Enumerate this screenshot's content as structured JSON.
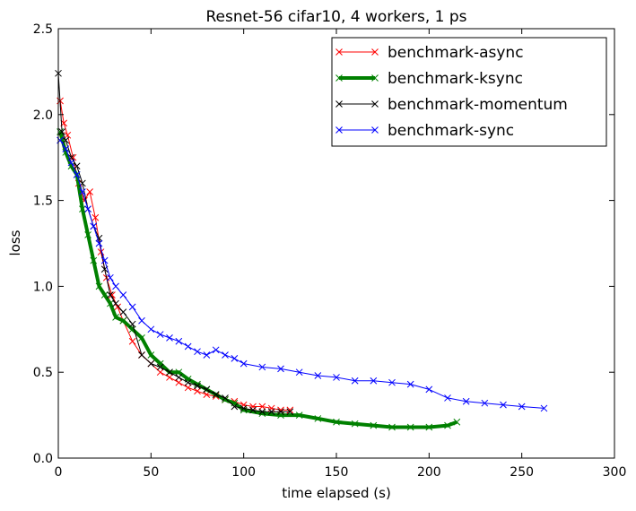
{
  "chart_data": {
    "type": "line",
    "title": "Resnet-56 cifar10, 4 workers, 1 ps",
    "xlabel": "time elapsed (s)",
    "ylabel": "loss",
    "xlim": [
      0,
      300
    ],
    "ylim": [
      0.0,
      2.5
    ],
    "xticks": [
      "0",
      "50",
      "100",
      "150",
      "200",
      "250",
      "300"
    ],
    "yticks": [
      "0.0",
      "0.5",
      "1.0",
      "1.5",
      "2.0",
      "2.5"
    ],
    "grid": false,
    "legend_position": "top-right",
    "series": [
      {
        "name": "benchmark-async",
        "color": "#ff0000",
        "marker": "x",
        "x": [
          1,
          3,
          5,
          8,
          11,
          14,
          17,
          20,
          23,
          26,
          29,
          32,
          35,
          40,
          45,
          50,
          55,
          60,
          65,
          70,
          75,
          80,
          85,
          90,
          95,
          100,
          105,
          110,
          115,
          120,
          125
        ],
        "y": [
          2.08,
          1.95,
          1.88,
          1.75,
          1.6,
          1.5,
          1.55,
          1.4,
          1.2,
          1.05,
          0.95,
          0.88,
          0.8,
          0.68,
          0.6,
          0.55,
          0.5,
          0.47,
          0.44,
          0.41,
          0.39,
          0.37,
          0.36,
          0.34,
          0.33,
          0.31,
          0.3,
          0.3,
          0.29,
          0.28,
          0.28
        ]
      },
      {
        "name": "benchmark-ksync",
        "color": "#008000",
        "marker": "x",
        "x": [
          1,
          4,
          7,
          10,
          13,
          16,
          19,
          22,
          25,
          28,
          31,
          35,
          40,
          45,
          50,
          55,
          60,
          65,
          70,
          75,
          80,
          85,
          90,
          95,
          100,
          110,
          120,
          130,
          140,
          150,
          160,
          170,
          180,
          190,
          200,
          210,
          215
        ],
        "y": [
          1.9,
          1.78,
          1.7,
          1.65,
          1.45,
          1.3,
          1.15,
          1.0,
          0.95,
          0.9,
          0.82,
          0.8,
          0.75,
          0.7,
          0.6,
          0.55,
          0.5,
          0.5,
          0.46,
          0.43,
          0.4,
          0.37,
          0.34,
          0.32,
          0.28,
          0.26,
          0.25,
          0.25,
          0.23,
          0.21,
          0.2,
          0.19,
          0.18,
          0.18,
          0.18,
          0.19,
          0.21
        ]
      },
      {
        "name": "benchmark-momentum",
        "color": "#000000",
        "marker": "x",
        "x": [
          0,
          2,
          4,
          7,
          10,
          13,
          16,
          19,
          22,
          25,
          28,
          31,
          35,
          40,
          45,
          50,
          55,
          60,
          65,
          70,
          75,
          80,
          85,
          90,
          95,
          100,
          105,
          110,
          115,
          120,
          125
        ],
        "y": [
          2.24,
          1.9,
          1.85,
          1.75,
          1.7,
          1.6,
          1.45,
          1.35,
          1.28,
          1.1,
          0.95,
          0.9,
          0.85,
          0.78,
          0.6,
          0.55,
          0.53,
          0.5,
          0.47,
          0.44,
          0.42,
          0.4,
          0.37,
          0.35,
          0.3,
          0.29,
          0.28,
          0.27,
          0.27,
          0.27,
          0.27
        ]
      },
      {
        "name": "benchmark-sync",
        "color": "#0000ff",
        "marker": "x",
        "x": [
          1,
          4,
          7,
          10,
          13,
          16,
          19,
          22,
          25,
          28,
          31,
          35,
          40,
          45,
          50,
          55,
          60,
          65,
          70,
          75,
          80,
          85,
          90,
          95,
          100,
          110,
          120,
          130,
          140,
          150,
          160,
          170,
          180,
          190,
          200,
          210,
          220,
          230,
          240,
          250,
          262
        ],
        "y": [
          1.85,
          1.8,
          1.72,
          1.65,
          1.55,
          1.45,
          1.35,
          1.25,
          1.15,
          1.05,
          1.0,
          0.95,
          0.88,
          0.8,
          0.75,
          0.72,
          0.7,
          0.68,
          0.65,
          0.62,
          0.6,
          0.63,
          0.6,
          0.58,
          0.55,
          0.53,
          0.52,
          0.5,
          0.48,
          0.47,
          0.45,
          0.45,
          0.44,
          0.43,
          0.4,
          0.35,
          0.33,
          0.32,
          0.31,
          0.3,
          0.29
        ]
      }
    ]
  }
}
